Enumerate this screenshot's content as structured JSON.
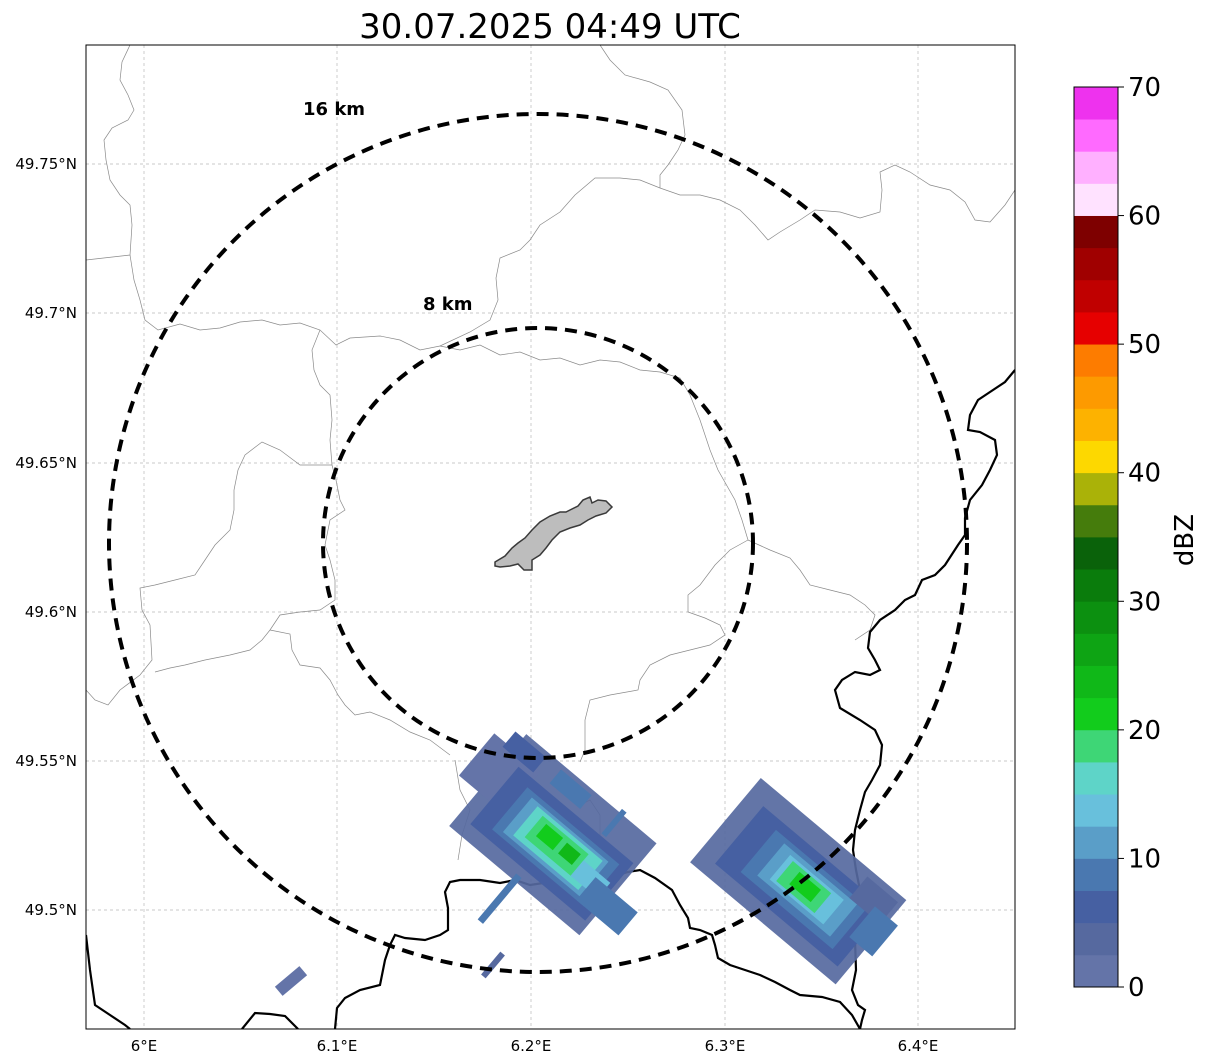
{
  "title": "30.07.2025 04:49 UTC",
  "range_rings": [
    {
      "label": "8 km",
      "radius_km": 8
    },
    {
      "label": "16 km",
      "radius_km": 16
    }
  ],
  "lat_ticks": [
    {
      "label": "49.75°N",
      "lat": 49.75
    },
    {
      "label": "49.7°N",
      "lat": 49.7
    },
    {
      "label": "49.65°N",
      "lat": 49.65
    },
    {
      "label": "49.6°N",
      "lat": 49.6
    },
    {
      "label": "49.55°N",
      "lat": 49.55
    },
    {
      "label": "49.5°N",
      "lat": 49.5
    }
  ],
  "lon_ticks": [
    {
      "label": "6°E",
      "lon": 6.0
    },
    {
      "label": "6.1°E",
      "lon": 6.1
    },
    {
      "label": "6.2°E",
      "lon": 6.2
    },
    {
      "label": "6.3°E",
      "lon": 6.3
    },
    {
      "label": "6.4°E",
      "lon": 6.4
    }
  ],
  "map_extent": {
    "lon": [
      5.97,
      6.45
    ],
    "lat": [
      49.46,
      49.79
    ]
  },
  "radar_center": {
    "lon": 6.202,
    "lat": 49.623
  },
  "colorbar": {
    "label": "dBZ",
    "min": 0,
    "max": 70,
    "ticks": [
      "0",
      "10",
      "20",
      "30",
      "40",
      "50",
      "60",
      "70"
    ],
    "colors": [
      "#6474a8",
      "#56699f",
      "#4660a2",
      "#4a78b0",
      "#5a9ec8",
      "#68c0dc",
      "#5ed4c8",
      "#3ed676",
      "#12cc1c",
      "#10b818",
      "#0ea414",
      "#0c9010",
      "#0a7c0c",
      "#0a620a",
      "#457c0c",
      "#aab208",
      "#fdd800",
      "#fdb200",
      "#fd9a00",
      "#fd7c00",
      "#e60000",
      "#c00000",
      "#a00000",
      "#7e0000",
      "#ffe2ff",
      "#ffb0ff",
      "#ff6aff",
      "#ee32ee"
    ]
  },
  "echoes": [
    {
      "name": "echo-cell-center",
      "lon": 6.215,
      "lat": 49.523,
      "max_dbz": 22
    },
    {
      "name": "echo-cell-east",
      "lon": 6.345,
      "lat": 49.51,
      "max_dbz": 21
    },
    {
      "name": "echo-speck-southwest",
      "lon": 6.075,
      "lat": 49.477,
      "max_dbz": 2
    }
  ]
}
